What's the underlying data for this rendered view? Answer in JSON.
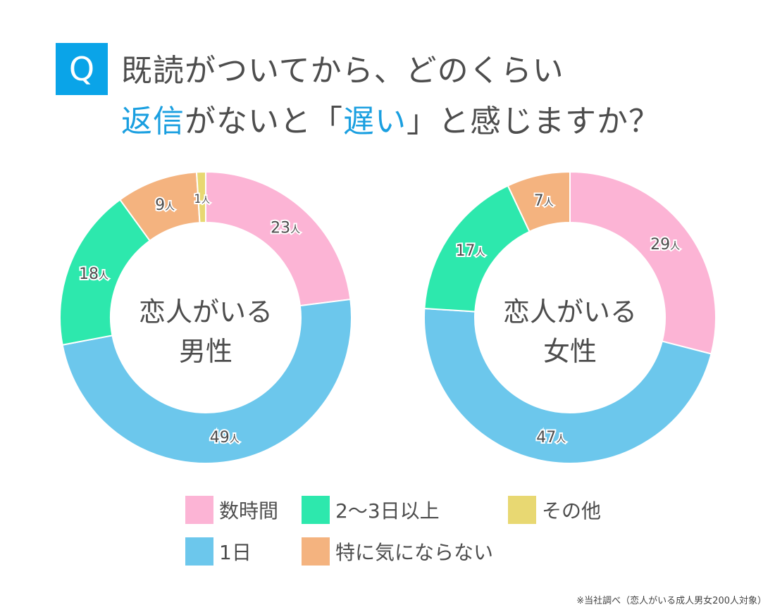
{
  "header": {
    "q_label": "Q",
    "line1": "既読がついてから、どのくらい",
    "line2": [
      {
        "text": "返信",
        "accent": true
      },
      {
        "text": "がないと「",
        "accent": false
      },
      {
        "text": "遅い",
        "accent": true
      },
      {
        "text": "」と感じますか？",
        "accent": false
      }
    ]
  },
  "chart_data": [
    {
      "type": "pie",
      "variant": "donut",
      "center_label": [
        "恋人がいる",
        "男性"
      ],
      "unit": "人",
      "categories": [
        "数時間",
        "1日",
        "2〜3日以上",
        "特に気にならない",
        "その他"
      ],
      "values": [
        23,
        49,
        18,
        9,
        1
      ]
    },
    {
      "type": "pie",
      "variant": "donut",
      "center_label": [
        "恋人がいる",
        "女性"
      ],
      "unit": "人",
      "categories": [
        "数時間",
        "1日",
        "2〜3日以上",
        "特に気にならない"
      ],
      "values": [
        29,
        47,
        17,
        7
      ]
    }
  ],
  "colors": {
    "数時間": "#fcb4d5",
    "1日": "#6cc7ec",
    "2〜3日以上": "#2de8ad",
    "特に気にならない": "#f4b37f",
    "その他": "#e8d872",
    "accent": "#0aa4e8"
  },
  "legend": [
    {
      "label": "数時間",
      "color": "#fcb4d5"
    },
    {
      "label": "2〜3日以上",
      "color": "#2de8ad"
    },
    {
      "label": "その他",
      "color": "#e8d872"
    },
    {
      "label": "1日",
      "color": "#6cc7ec"
    },
    {
      "label": "特に気にならない",
      "color": "#f4b37f"
    }
  ],
  "footnote": "※当社調べ（恋人がいる成人男女200人対象）"
}
